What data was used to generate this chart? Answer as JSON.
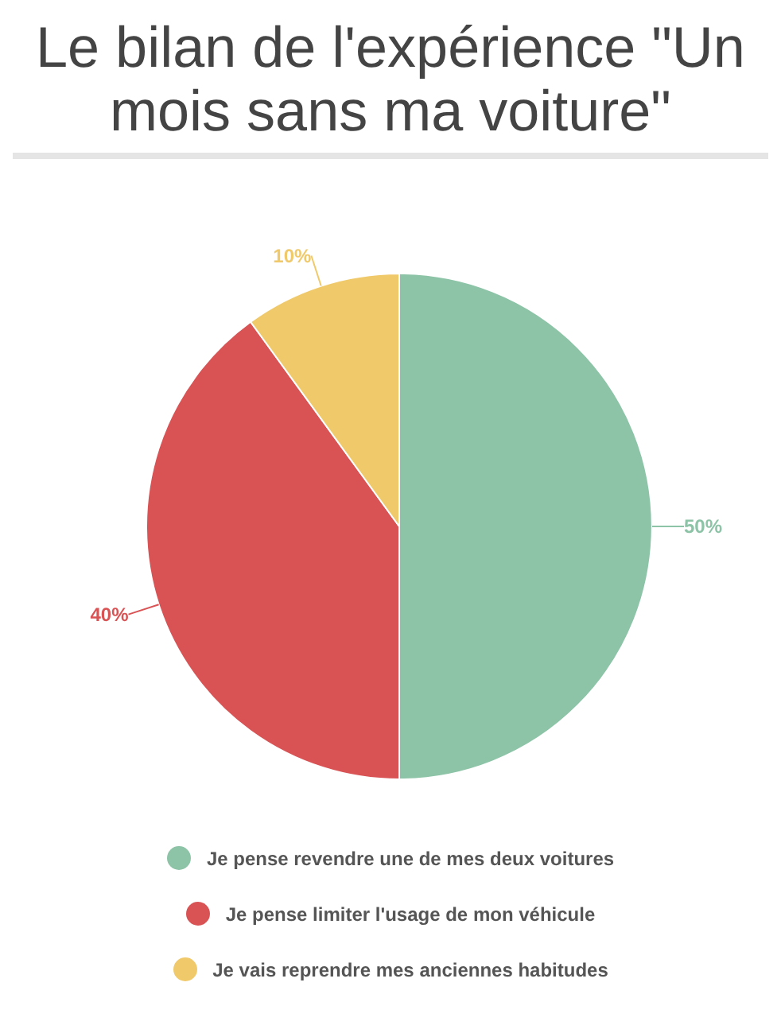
{
  "chart_data": {
    "type": "pie",
    "title": "Le bilan de l'expérience \"Un mois sans ma voiture\"",
    "categories": [
      "Je pense revendre une de mes deux voitures",
      "Je pense limiter l'usage de mon véhicule",
      "Je vais reprendre mes anciennes habitudes"
    ],
    "values": [
      50,
      40,
      10
    ],
    "value_labels": [
      "50%",
      "40%",
      "10%"
    ],
    "colors": [
      "#8dc3a7",
      "#d95355",
      "#f0c96b"
    ],
    "legend": "bottom"
  }
}
